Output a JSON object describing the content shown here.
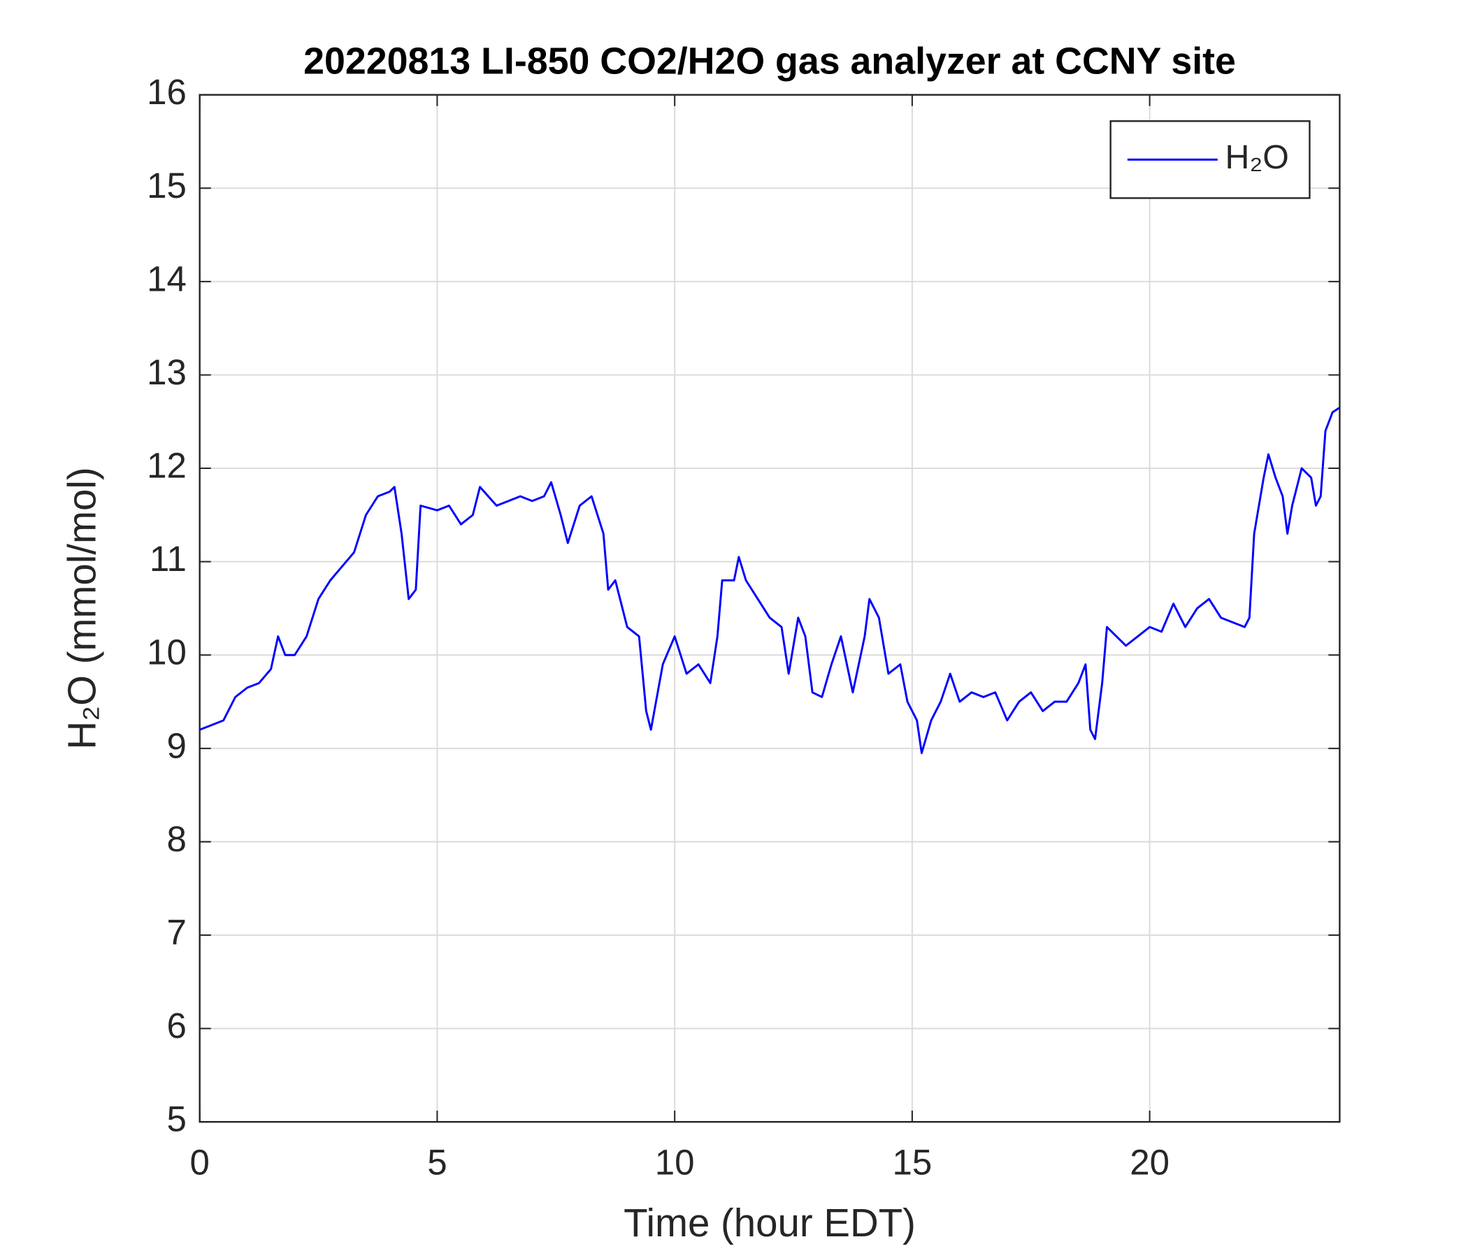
{
  "chart_data": {
    "type": "line",
    "title": "20220813 LI-850 CO2/H2O gas analyzer at CCNY site",
    "xlabel": "Time (hour EDT)",
    "ylabel": "H₂O (mmol/mol)",
    "xlim": [
      0,
      24
    ],
    "ylim": [
      5,
      16
    ],
    "xticks": [
      0,
      5,
      10,
      15,
      20
    ],
    "yticks": [
      5,
      6,
      7,
      8,
      9,
      10,
      11,
      12,
      13,
      14,
      15,
      16
    ],
    "grid": true,
    "legend": "upper right",
    "x": [
      0,
      0.25,
      0.5,
      0.75,
      1.0,
      1.25,
      1.5,
      1.65,
      1.8,
      2.0,
      2.25,
      2.5,
      2.75,
      3.0,
      3.25,
      3.5,
      3.75,
      4.0,
      4.1,
      4.25,
      4.4,
      4.55,
      4.65,
      5.0,
      5.25,
      5.5,
      5.75,
      5.9,
      6.25,
      6.5,
      6.75,
      7.0,
      7.25,
      7.4,
      7.6,
      7.75,
      8.0,
      8.25,
      8.5,
      8.6,
      8.75,
      9.0,
      9.25,
      9.4,
      9.5,
      9.75,
      10.0,
      10.25,
      10.5,
      10.75,
      10.9,
      11.0,
      11.25,
      11.35,
      11.5,
      11.75,
      12.0,
      12.25,
      12.4,
      12.6,
      12.75,
      12.9,
      13.1,
      13.3,
      13.5,
      13.75,
      14.0,
      14.1,
      14.3,
      14.5,
      14.75,
      14.9,
      15.1,
      15.2,
      15.4,
      15.6,
      15.8,
      16.0,
      16.25,
      16.5,
      16.75,
      17.0,
      17.25,
      17.5,
      17.75,
      18.0,
      18.25,
      18.5,
      18.65,
      18.75,
      18.85,
      19.0,
      19.1,
      19.3,
      19.5,
      19.75,
      20.0,
      20.25,
      20.5,
      20.75,
      21.0,
      21.25,
      21.5,
      21.75,
      22.0,
      22.1,
      22.2,
      22.4,
      22.5,
      22.65,
      22.8,
      22.9,
      23.0,
      23.2,
      23.4,
      23.5,
      23.6,
      23.7,
      23.85,
      24.0
    ],
    "series": [
      {
        "name": "H₂O",
        "color": "#0000ff",
        "values": [
          9.2,
          9.25,
          9.3,
          9.55,
          9.65,
          9.7,
          9.85,
          10.2,
          10.0,
          10.0,
          10.2,
          10.6,
          10.8,
          10.95,
          11.1,
          11.5,
          11.7,
          11.75,
          11.8,
          11.3,
          10.6,
          10.7,
          11.6,
          11.55,
          11.6,
          11.4,
          11.5,
          11.8,
          11.6,
          11.65,
          11.7,
          11.65,
          11.7,
          11.85,
          11.5,
          11.2,
          11.6,
          11.7,
          11.3,
          10.7,
          10.8,
          10.3,
          10.2,
          9.4,
          9.2,
          9.9,
          10.2,
          9.8,
          9.9,
          9.7,
          10.2,
          10.8,
          10.8,
          11.05,
          10.8,
          10.6,
          10.4,
          10.3,
          9.8,
          10.4,
          10.2,
          9.6,
          9.55,
          9.9,
          10.2,
          9.6,
          10.2,
          10.6,
          10.4,
          9.8,
          9.9,
          9.5,
          9.3,
          8.95,
          9.3,
          9.5,
          9.8,
          9.5,
          9.6,
          9.55,
          9.6,
          9.3,
          9.5,
          9.6,
          9.4,
          9.5,
          9.5,
          9.7,
          9.9,
          9.2,
          9.1,
          9.7,
          10.3,
          10.2,
          10.1,
          10.2,
          10.3,
          10.25,
          10.55,
          10.3,
          10.5,
          10.6,
          10.4,
          10.35,
          10.3,
          10.4,
          11.3,
          11.9,
          12.15,
          11.9,
          11.7,
          11.3,
          11.6,
          12.0,
          11.9,
          11.6,
          11.7,
          12.4,
          12.6,
          12.65
        ]
      }
    ]
  }
}
